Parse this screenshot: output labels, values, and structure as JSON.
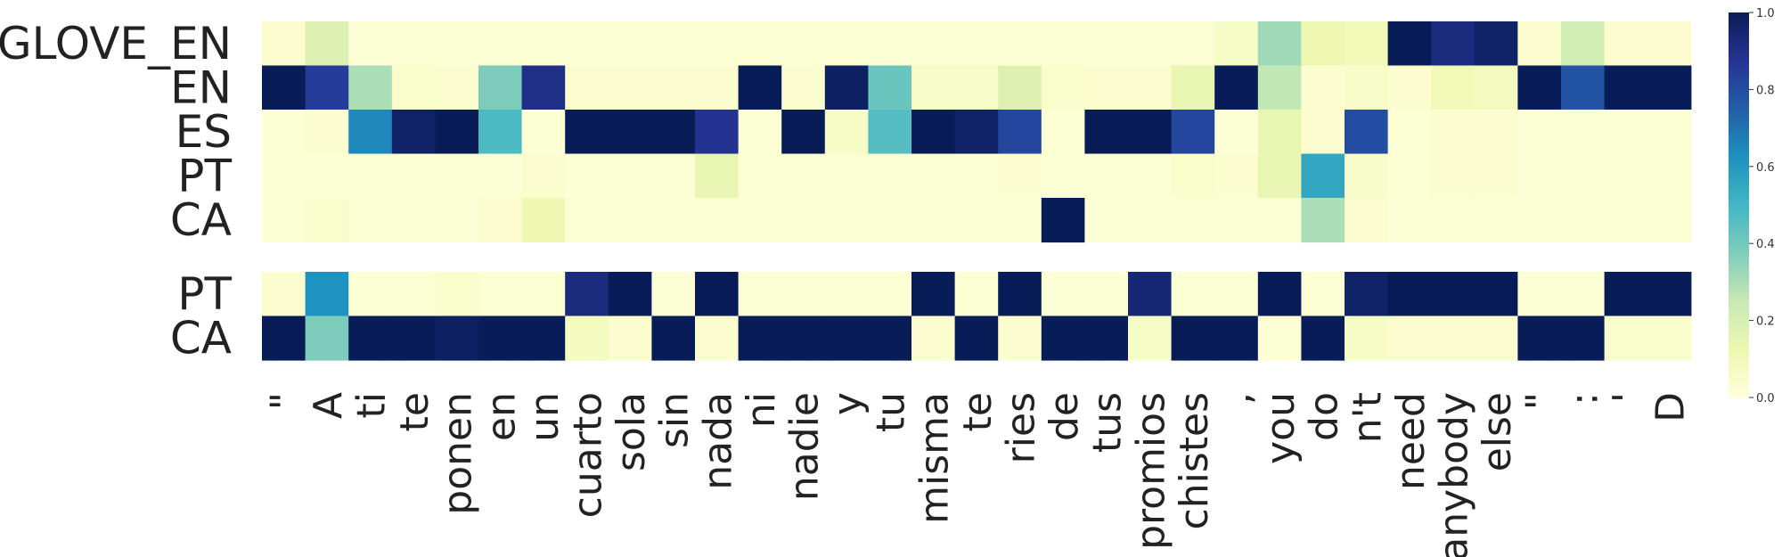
{
  "chart_data": {
    "type": "heatmap",
    "colormap": "YlGnBu",
    "colorbar": {
      "range": [
        0.0,
        1.0
      ],
      "ticks": [
        "0.0",
        "0.2",
        "0.4",
        "0.6",
        "0.8",
        "1.0"
      ]
    },
    "columns": [
      "\"",
      "A",
      "ti",
      "te",
      "ponen",
      "en",
      "un",
      "cuarto",
      "sola",
      "sin",
      "nada",
      "ni",
      "nadie",
      "y",
      "tu",
      "misma",
      "te",
      "ries",
      "de",
      "tus",
      "promios",
      "chistes",
      ",",
      "you",
      "do",
      "n't",
      "need",
      "anybody",
      "else",
      "\"",
      ":",
      "'",
      "D"
    ],
    "heatmaps": [
      {
        "rows": [
          "GLOVE_EN",
          "EN",
          "ES",
          "PT",
          "CA"
        ],
        "values": [
          [
            0.03,
            0.18,
            0.02,
            0.02,
            0.02,
            0.02,
            0.02,
            0.02,
            0.02,
            0.02,
            0.02,
            0.02,
            0.02,
            0.02,
            0.02,
            0.02,
            0.02,
            0.02,
            0.02,
            0.02,
            0.02,
            0.02,
            0.06,
            0.32,
            0.12,
            0.1,
            1.0,
            0.92,
            0.97,
            0.03,
            0.22,
            0.03,
            0.03
          ],
          [
            1.0,
            0.85,
            0.3,
            0.04,
            0.03,
            0.38,
            0.9,
            0.03,
            0.03,
            0.03,
            0.03,
            1.0,
            0.03,
            0.98,
            0.42,
            0.05,
            0.05,
            0.18,
            0.04,
            0.03,
            0.03,
            0.14,
            1.0,
            0.26,
            0.03,
            0.05,
            0.03,
            0.1,
            0.08,
            1.0,
            0.78,
            1.0,
            1.0
          ],
          [
            0.02,
            0.03,
            0.65,
            0.97,
            1.0,
            0.48,
            0.02,
            1.0,
            1.0,
            1.0,
            0.88,
            0.02,
            1.0,
            0.06,
            0.46,
            1.0,
            0.97,
            0.82,
            0.02,
            1.0,
            1.0,
            0.82,
            0.02,
            0.14,
            0.03,
            0.8,
            0.02,
            0.03,
            0.03,
            0.02,
            0.02,
            0.02,
            0.02
          ],
          [
            0.02,
            0.02,
            0.02,
            0.02,
            0.02,
            0.02,
            0.03,
            0.02,
            0.02,
            0.02,
            0.14,
            0.02,
            0.02,
            0.02,
            0.02,
            0.02,
            0.02,
            0.03,
            0.02,
            0.02,
            0.02,
            0.04,
            0.03,
            0.14,
            0.55,
            0.05,
            0.02,
            0.03,
            0.03,
            0.02,
            0.02,
            0.02,
            0.02
          ],
          [
            0.02,
            0.04,
            0.02,
            0.02,
            0.02,
            0.03,
            0.12,
            0.02,
            0.02,
            0.02,
            0.02,
            0.02,
            0.02,
            0.02,
            0.02,
            0.02,
            0.02,
            0.02,
            1.0,
            0.02,
            0.02,
            0.02,
            0.02,
            0.02,
            0.3,
            0.03,
            0.02,
            0.02,
            0.02,
            0.02,
            0.02,
            0.02,
            0.02
          ]
        ]
      },
      {
        "rows": [
          "PT",
          "CA"
        ],
        "values": [
          [
            0.03,
            0.62,
            0.02,
            0.02,
            0.04,
            0.02,
            0.02,
            0.92,
            1.0,
            0.02,
            1.0,
            0.02,
            0.02,
            0.02,
            0.02,
            1.0,
            0.02,
            1.0,
            0.02,
            0.02,
            0.94,
            0.02,
            0.02,
            1.0,
            0.02,
            0.97,
            1.0,
            1.0,
            1.0,
            0.02,
            0.02,
            1.0,
            1.0
          ],
          [
            1.0,
            0.38,
            1.0,
            1.0,
            0.98,
            1.0,
            1.0,
            0.08,
            0.03,
            1.0,
            0.03,
            1.0,
            1.0,
            1.0,
            1.0,
            0.03,
            1.0,
            0.03,
            1.0,
            1.0,
            0.06,
            1.0,
            1.0,
            0.02,
            1.0,
            0.06,
            0.03,
            0.03,
            0.03,
            1.0,
            1.0,
            0.04,
            0.04
          ]
        ]
      }
    ]
  }
}
